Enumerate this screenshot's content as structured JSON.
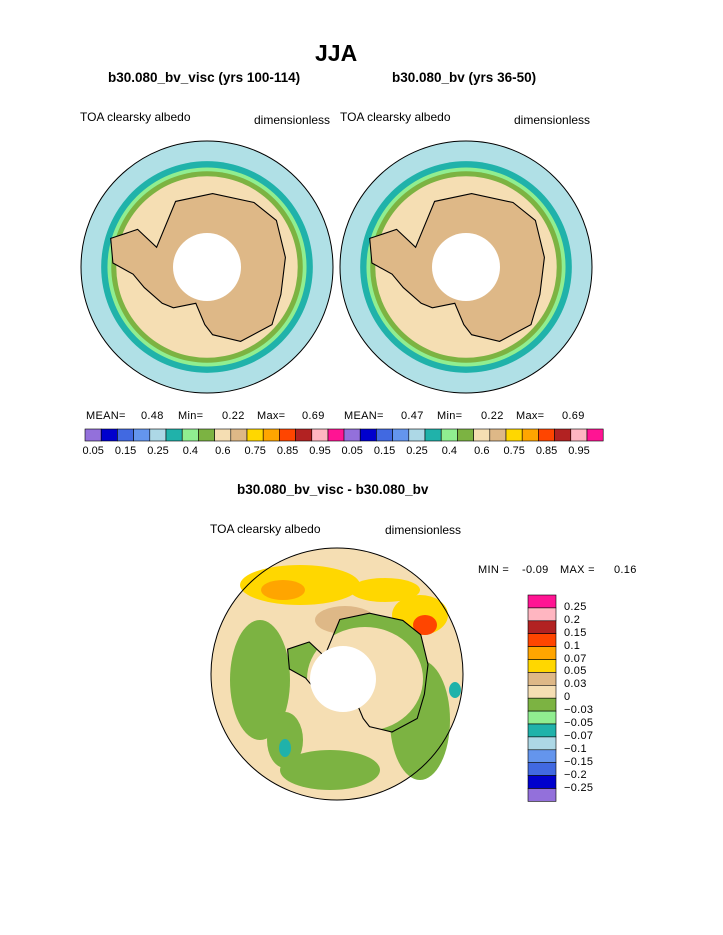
{
  "page": {
    "title": "JJA"
  },
  "chart_data": [
    {
      "type": "polar_contour_map",
      "title": "b30.080_bv_visc (yrs 100-114)",
      "left_label": "TOA clearsky albedo",
      "right_label": "dimensionless",
      "stats": {
        "mean_label": "MEAN=",
        "mean": "0.48",
        "min_label": "Min=",
        "min": "0.22",
        "max_label": "Max=",
        "max": "0.69"
      },
      "levels": [
        "0.05",
        "0.15",
        "0.25",
        "0.4",
        "0.6",
        "0.75",
        "0.85",
        "0.95"
      ],
      "colors": [
        "#9370DB",
        "#0000CD",
        "#4169E1",
        "#6495ED",
        "#ADD8E6",
        "#20B2AA",
        "#90EE90",
        "#7CB342",
        "#F5DEB3",
        "#DEB887",
        "#FFD700",
        "#FFA500",
        "#FF4500",
        "#B22222",
        "#FFB6C1",
        "#FF1493"
      ]
    },
    {
      "type": "polar_contour_map",
      "title": "b30.080_bv (yrs 36-50)",
      "left_label": "TOA clearsky albedo",
      "right_label": "dimensionless",
      "stats": {
        "mean_label": "MEAN=",
        "mean": "0.47",
        "min_label": "Min=",
        "min": "0.22",
        "max_label": "Max=",
        "max": "0.69"
      },
      "levels": [
        "0.05",
        "0.15",
        "0.25",
        "0.4",
        "0.6",
        "0.75",
        "0.85",
        "0.95"
      ],
      "colors": [
        "#9370DB",
        "#0000CD",
        "#4169E1",
        "#6495ED",
        "#ADD8E6",
        "#20B2AA",
        "#90EE90",
        "#7CB342",
        "#F5DEB3",
        "#DEB887",
        "#FFD700",
        "#FFA500",
        "#FF4500",
        "#B22222",
        "#FFB6C1",
        "#FF1493"
      ]
    },
    {
      "type": "polar_contour_map_difference",
      "title": "b30.080_bv_visc - b30.080_bv",
      "left_label": "TOA clearsky albedo",
      "right_label": "dimensionless",
      "stats": {
        "min_label": "MIN =",
        "min": "-0.09",
        "max_label": "MAX =",
        "max": "0.16"
      },
      "levels": [
        "0.25",
        "0.2",
        "0.15",
        "0.1",
        "0.07",
        "0.05",
        "0.03",
        "0",
        "−0.03",
        "−0.05",
        "−0.07",
        "−0.1",
        "−0.15",
        "−0.2",
        "−0.25"
      ],
      "colors": [
        "#FF1493",
        "#FFB6C1",
        "#B22222",
        "#FF4500",
        "#FFA500",
        "#FFD700",
        "#DEB887",
        "#F5DEB3",
        "#7CB342",
        "#90EE90",
        "#20B2AA",
        "#ADD8E6",
        "#6495ED",
        "#4169E1",
        "#0000CD",
        "#9370DB"
      ]
    }
  ]
}
